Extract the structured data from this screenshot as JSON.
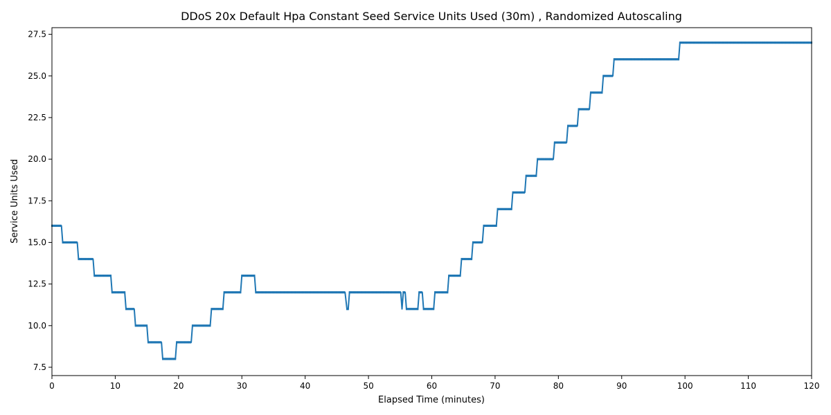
{
  "chart_data": {
    "type": "line",
    "title": "DDoS 20x Default Hpa Constant Seed Service Units Used (30m) , Randomized Autoscaling",
    "xlabel": "Elapsed Time (minutes)",
    "ylabel": "Service Units Used",
    "xlim": [
      0,
      120
    ],
    "ylim": [
      7.0,
      27.9
    ],
    "xticks": [
      0,
      10,
      20,
      30,
      40,
      50,
      60,
      70,
      80,
      90,
      100,
      110,
      120
    ],
    "xtick_labels": [
      "0",
      "10",
      "20",
      "30",
      "40",
      "50",
      "60",
      "70",
      "80",
      "90",
      "100",
      "110",
      "120"
    ],
    "yticks": [
      7.5,
      10.0,
      12.5,
      15.0,
      17.5,
      20.0,
      22.5,
      25.0,
      27.5
    ],
    "ytick_labels": [
      "7.5",
      "10.0",
      "12.5",
      "15.0",
      "17.5",
      "20.0",
      "22.5",
      "25.0",
      "27.5"
    ],
    "grid": false,
    "color": "#1f77b4",
    "series": [
      {
        "points": [
          [
            0,
            16
          ],
          [
            1.5,
            16
          ],
          [
            1.7,
            15
          ],
          [
            4.0,
            15
          ],
          [
            4.2,
            14
          ],
          [
            6.5,
            14
          ],
          [
            6.7,
            13
          ],
          [
            9.3,
            13
          ],
          [
            9.5,
            12
          ],
          [
            11.5,
            12
          ],
          [
            11.7,
            11
          ],
          [
            13.0,
            11
          ],
          [
            13.2,
            10
          ],
          [
            15.0,
            10
          ],
          [
            15.2,
            9
          ],
          [
            17.3,
            9
          ],
          [
            17.5,
            8
          ],
          [
            19.5,
            8
          ],
          [
            19.7,
            9
          ],
          [
            22.0,
            9
          ],
          [
            22.2,
            10
          ],
          [
            25.0,
            10
          ],
          [
            25.2,
            11
          ],
          [
            27.0,
            11
          ],
          [
            27.2,
            12
          ],
          [
            29.8,
            12
          ],
          [
            30.0,
            13
          ],
          [
            32.0,
            13
          ],
          [
            32.2,
            12
          ],
          [
            46.3,
            12
          ],
          [
            46.6,
            11
          ],
          [
            46.8,
            11
          ],
          [
            47.0,
            12
          ],
          [
            55.1,
            12
          ],
          [
            55.3,
            11
          ],
          [
            55.5,
            12
          ],
          [
            55.8,
            12
          ],
          [
            56.0,
            11
          ],
          [
            57.8,
            11
          ],
          [
            58.0,
            12
          ],
          [
            58.5,
            12
          ],
          [
            58.7,
            11
          ],
          [
            60.3,
            11
          ],
          [
            60.5,
            12
          ],
          [
            62.5,
            12
          ],
          [
            62.7,
            13
          ],
          [
            64.5,
            13
          ],
          [
            64.7,
            14
          ],
          [
            66.3,
            14
          ],
          [
            66.5,
            15
          ],
          [
            68.0,
            15
          ],
          [
            68.2,
            16
          ],
          [
            70.2,
            16
          ],
          [
            70.4,
            17
          ],
          [
            72.6,
            17
          ],
          [
            72.8,
            18
          ],
          [
            74.7,
            18
          ],
          [
            74.9,
            19
          ],
          [
            76.5,
            19
          ],
          [
            76.7,
            20
          ],
          [
            79.2,
            20
          ],
          [
            79.4,
            21
          ],
          [
            81.3,
            21
          ],
          [
            81.5,
            22
          ],
          [
            83.0,
            22
          ],
          [
            83.2,
            23
          ],
          [
            84.9,
            23
          ],
          [
            85.1,
            24
          ],
          [
            86.9,
            24
          ],
          [
            87.1,
            25
          ],
          [
            88.6,
            25
          ],
          [
            88.8,
            26
          ],
          [
            99.0,
            26
          ],
          [
            99.2,
            27
          ],
          [
            120,
            27
          ]
        ]
      }
    ]
  }
}
